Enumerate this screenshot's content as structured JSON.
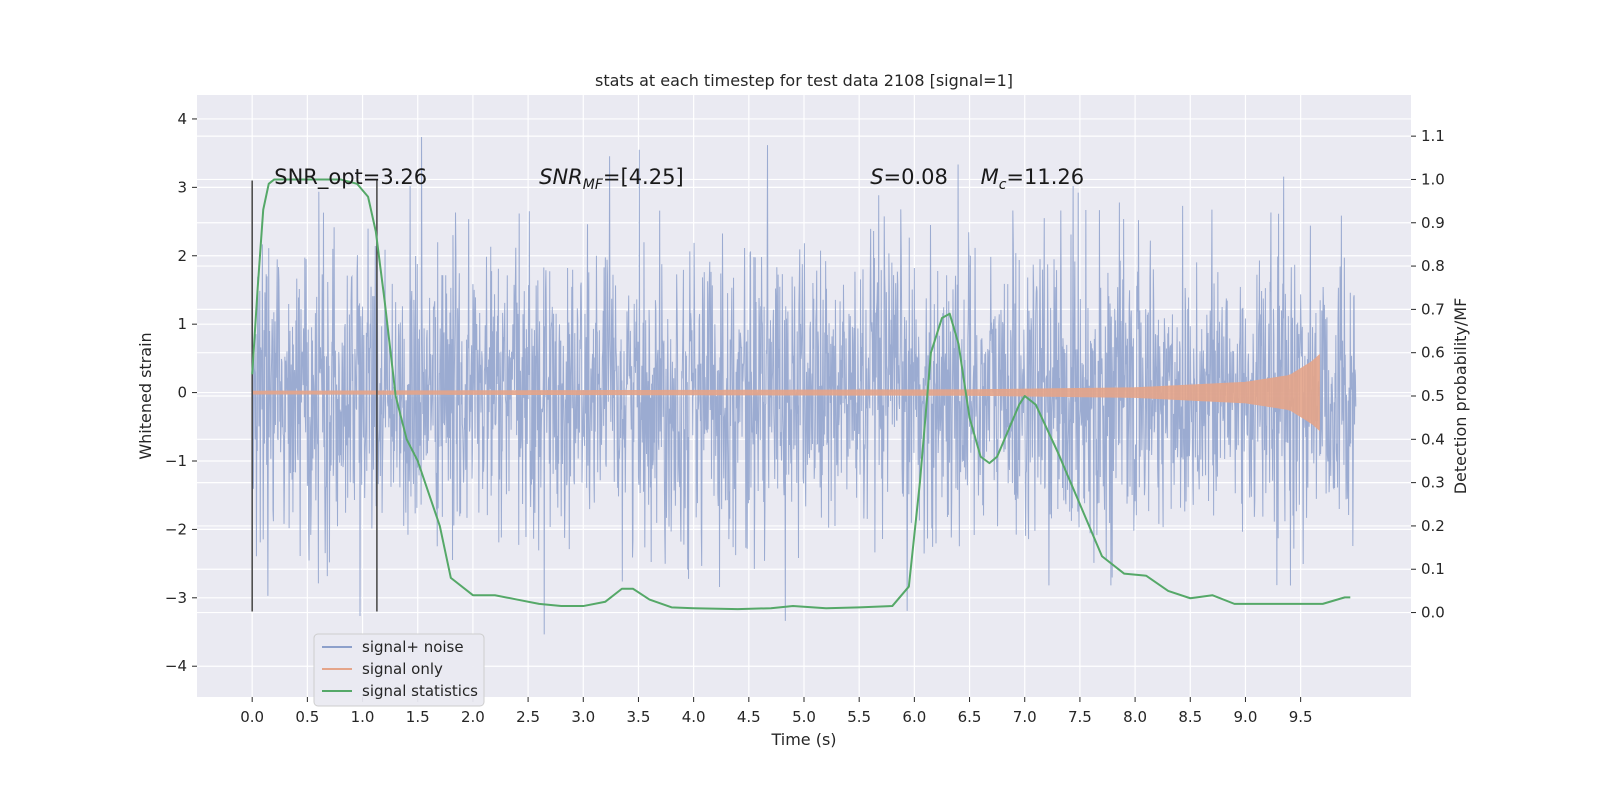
{
  "chart_data": {
    "type": "line",
    "title": "stats at each timestep for test data 2108 [signal=1]",
    "xlabel": "Time (s)",
    "ylabel": "Whitened strain",
    "y2label": "Detection probability/MF",
    "xlim": [
      -0.5,
      10.5
    ],
    "ylim": [
      -4.45,
      4.35
    ],
    "y2lim": [
      -0.195,
      1.195
    ],
    "x_ticks": [
      "0.0",
      "0.5",
      "1.0",
      "1.5",
      "2.0",
      "2.5",
      "3.0",
      "3.5",
      "4.0",
      "4.5",
      "5.0",
      "5.5",
      "6.0",
      "6.5",
      "7.0",
      "7.5",
      "8.0",
      "8.5",
      "9.0",
      "9.5"
    ],
    "y_ticks": [
      "−4",
      "−3",
      "−2",
      "−1",
      "0",
      "1",
      "2",
      "3",
      "4"
    ],
    "y2_ticks": [
      "0.0",
      "0.1",
      "0.2",
      "0.3",
      "0.4",
      "0.5",
      "0.6",
      "0.7",
      "0.8",
      "0.9",
      "1.0",
      "1.1"
    ],
    "grid": true,
    "legend_position": "lower-left",
    "series": [
      {
        "name": "signal+ noise",
        "color": "#8da0cb",
        "axis": "left",
        "x_range": [
          0.0,
          10.0
        ],
        "envelope_max": 4.0,
        "envelope_min": -4.05,
        "typical_amplitude": 1.25
      },
      {
        "name": "signal only",
        "color": "#e5a58a",
        "axis": "left",
        "x_range": [
          0.0,
          9.67
        ],
        "envelope": [
          [
            0.0,
            0.02
          ],
          [
            6.5,
            0.04
          ],
          [
            8.0,
            0.07
          ],
          [
            9.0,
            0.15
          ],
          [
            9.4,
            0.25
          ],
          [
            9.6,
            0.45
          ],
          [
            9.67,
            0.55
          ]
        ]
      },
      {
        "name": "signal statistics",
        "color": "#55a868",
        "axis": "right",
        "x": [
          0.0,
          0.05,
          0.1,
          0.15,
          0.2,
          0.3,
          0.5,
          0.8,
          0.95,
          1.05,
          1.12,
          1.2,
          1.3,
          1.4,
          1.5,
          1.7,
          1.8,
          2.0,
          2.2,
          2.4,
          2.6,
          2.8,
          3.0,
          3.2,
          3.35,
          3.45,
          3.6,
          3.8,
          4.0,
          4.4,
          4.7,
          4.9,
          5.2,
          5.5,
          5.8,
          5.95,
          6.05,
          6.15,
          6.25,
          6.32,
          6.4,
          6.5,
          6.6,
          6.68,
          6.75,
          6.85,
          6.95,
          7.0,
          7.1,
          7.3,
          7.5,
          7.7,
          7.9,
          8.1,
          8.3,
          8.5,
          8.7,
          8.9,
          9.1,
          9.4,
          9.7,
          9.9,
          9.95
        ],
        "y": [
          0.55,
          0.75,
          0.93,
          0.99,
          1.0,
          1.0,
          1.0,
          1.0,
          0.99,
          0.96,
          0.88,
          0.72,
          0.5,
          0.4,
          0.35,
          0.2,
          0.08,
          0.04,
          0.04,
          0.03,
          0.02,
          0.015,
          0.015,
          0.025,
          0.055,
          0.055,
          0.03,
          0.012,
          0.01,
          0.008,
          0.01,
          0.015,
          0.01,
          0.012,
          0.015,
          0.06,
          0.3,
          0.6,
          0.68,
          0.69,
          0.62,
          0.45,
          0.36,
          0.345,
          0.36,
          0.42,
          0.48,
          0.5,
          0.48,
          0.37,
          0.25,
          0.13,
          0.09,
          0.085,
          0.05,
          0.033,
          0.04,
          0.02,
          0.02,
          0.02,
          0.02,
          0.035,
          0.035
        ]
      }
    ],
    "vlines": [
      0.0,
      1.13
    ],
    "annotations": [
      {
        "text": "SNR_opt=3.26",
        "x": 0.2,
        "y": 3.05
      },
      {
        "text": "SNR",
        "sub": "MF",
        "rest": "=[4.25]",
        "italic": true,
        "x": 2.6,
        "y": 3.05
      },
      {
        "text": "S",
        "rest": "=0.08",
        "italic": true,
        "x": 5.6,
        "y": 3.05
      },
      {
        "text": "M",
        "sub": "c",
        "rest": "=11.26",
        "italic": true,
        "x": 6.6,
        "y": 3.05
      }
    ]
  }
}
